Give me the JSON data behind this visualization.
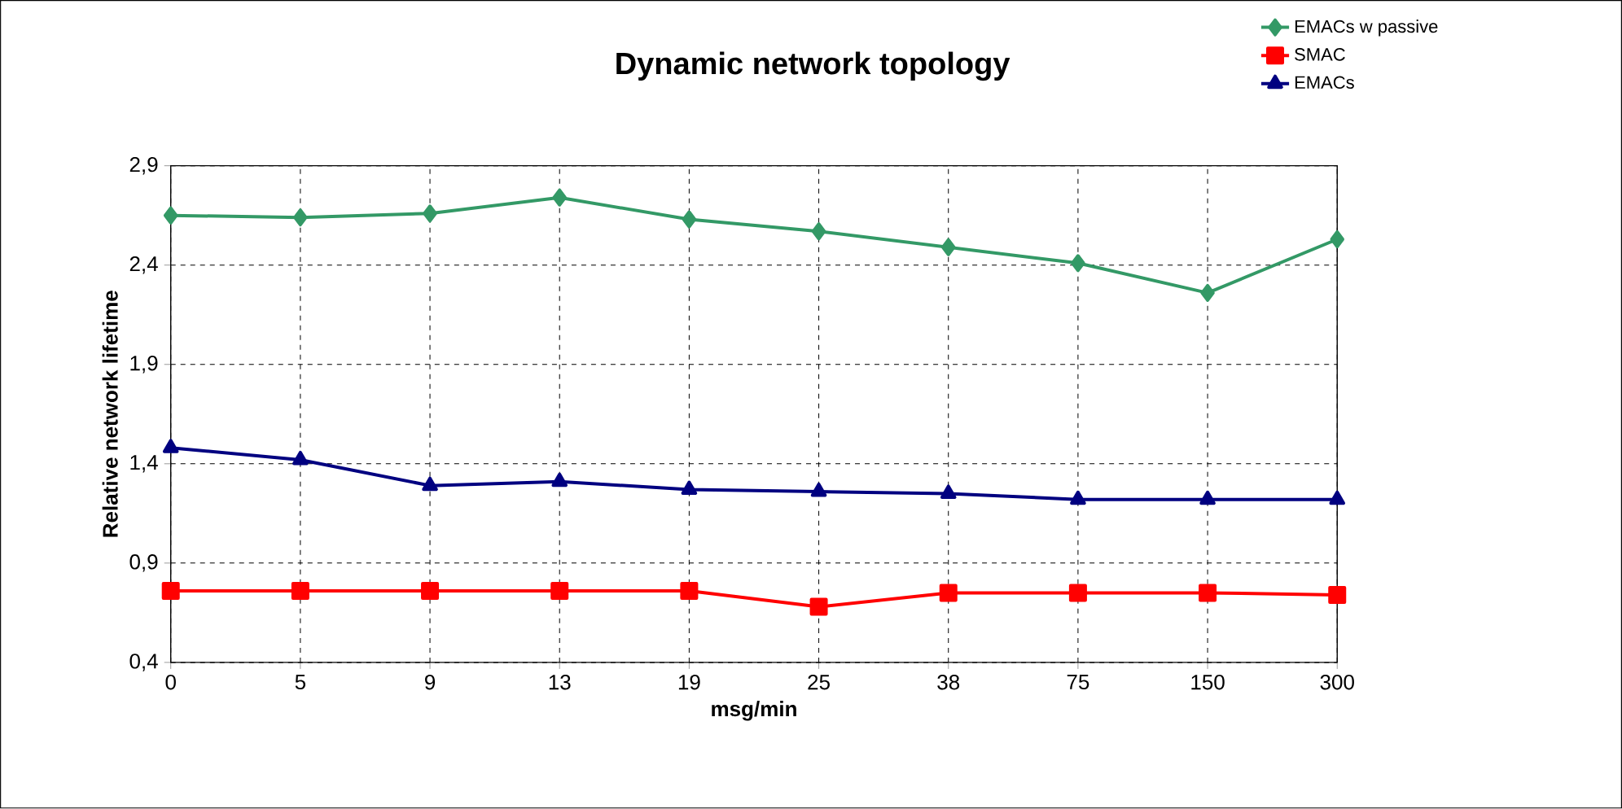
{
  "chart_data": {
    "type": "line",
    "title": "Dynamic network topology",
    "xlabel": "msg/min",
    "ylabel": "Relative network lifetime",
    "categories": [
      "0",
      "5",
      "9",
      "13",
      "19",
      "25",
      "38",
      "75",
      "150",
      "300"
    ],
    "series": [
      {
        "name": "EMACs w passive",
        "color": "#339966",
        "marker": "diamond",
        "values": [
          2.65,
          2.64,
          2.66,
          2.74,
          2.63,
          2.57,
          2.49,
          2.41,
          2.26,
          2.53
        ]
      },
      {
        "name": "SMAC",
        "color": "#ff0000",
        "marker": "square",
        "values": [
          0.76,
          0.76,
          0.76,
          0.76,
          0.76,
          0.68,
          0.75,
          0.75,
          0.75,
          0.74
        ]
      },
      {
        "name": "EMACs",
        "color": "#000080",
        "marker": "triangle",
        "values": [
          1.48,
          1.42,
          1.29,
          1.31,
          1.27,
          1.26,
          1.25,
          1.22,
          1.22,
          1.22
        ]
      }
    ],
    "ylim": [
      0.4,
      2.9
    ],
    "yticks": [
      {
        "value": 0.4,
        "label": "0,4"
      },
      {
        "value": 0.9,
        "label": "0,9"
      },
      {
        "value": 1.4,
        "label": "1,4"
      },
      {
        "value": 1.9,
        "label": "1,9"
      },
      {
        "value": 2.4,
        "label": "2,4"
      },
      {
        "value": 2.9,
        "label": "2,9"
      }
    ],
    "grid": true,
    "legend": "top right",
    "line_style": "solid"
  }
}
